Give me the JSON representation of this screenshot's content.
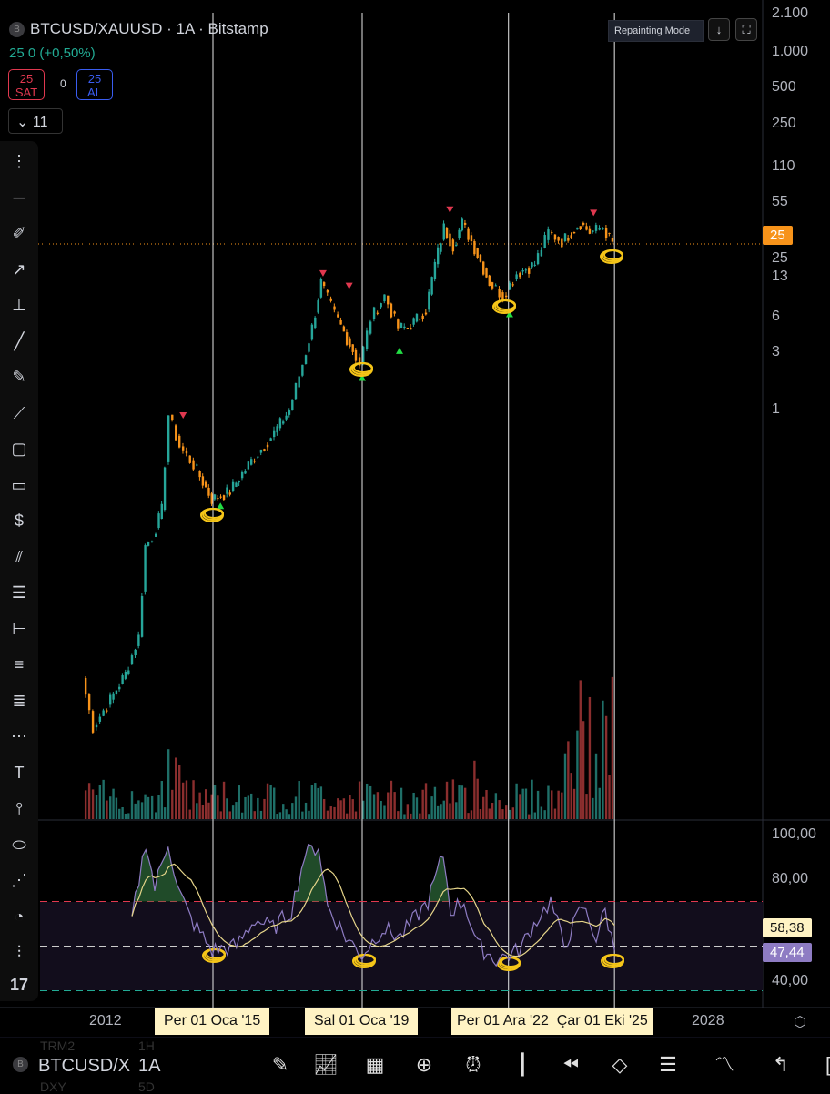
{
  "header": {
    "symbol": "BTCUSD/XAUUSD",
    "interval": "1A",
    "exchange": "Bitstamp",
    "title": "BTCUSD/XAUUSD · 1A · Bitstamp",
    "logo_letter": "B",
    "change": "25 0 (+0,50%)"
  },
  "trade": {
    "sell_value": "25",
    "sell_label": "SAT",
    "spread": "0",
    "buy_value": "25",
    "buy_label": "AL"
  },
  "indicators_toggle": {
    "count": "11"
  },
  "overlay": {
    "repainting_label": "Repainting Mode",
    "download_icon": "↓",
    "fullscreen_icon": "⛶"
  },
  "price_axis": {
    "ticks": [
      "2.100",
      "1.000",
      "500",
      "250",
      "110",
      "55",
      "25",
      "13",
      "6",
      "3",
      "1"
    ],
    "tick_values": [
      2100,
      1000,
      500,
      250,
      110,
      55,
      25,
      13,
      6,
      3,
      1
    ],
    "scale": "log",
    "current_price": "25",
    "current_color": "#f7931a"
  },
  "rsi_axis": {
    "ticks": [
      "100,00",
      "80,00",
      "40,00"
    ],
    "value_signal": "58,38",
    "value_rsi": "47,44",
    "levels": {
      "upper": 70,
      "middle": 50,
      "lower": 30
    },
    "colors": {
      "upper": "#e0384f",
      "middle": "#9598a1",
      "lower": "#22ab94",
      "rsi": "#8e7cc3",
      "signal": "#e6d58a"
    }
  },
  "time_axis": {
    "labels": [
      "2012",
      "2028"
    ],
    "markers": [
      "Per 01 Oca '15",
      "Sal 01 Oca '19",
      "Per 01 Ara '22",
      "Çar 01 Eki '25"
    ]
  },
  "chart_data": {
    "type": "candlestick",
    "scale": "log",
    "colors": {
      "up": "#26a69a",
      "down": "#f7931a",
      "vol_up": "#1f6f68",
      "vol_down": "#8b2e2e"
    },
    "price_path": [
      [
        2011.56,
        0.0057
      ],
      [
        2011.85,
        0.0022
      ],
      [
        2012.22,
        0.0034
      ],
      [
        2012.71,
        0.0062
      ],
      [
        2013.07,
        0.0126
      ],
      [
        2013.24,
        0.073
      ],
      [
        2013.44,
        0.087
      ],
      [
        2013.68,
        0.147
      ],
      [
        2013.88,
        0.92
      ],
      [
        2014.17,
        0.5
      ],
      [
        2014.54,
        0.35
      ],
      [
        2015.02,
        0.18
      ],
      [
        2015.51,
        0.21
      ],
      [
        2016.0,
        0.35
      ],
      [
        2016.61,
        0.6
      ],
      [
        2017.1,
        1.0
      ],
      [
        2017.46,
        2.45
      ],
      [
        2017.71,
        4.95
      ],
      [
        2017.95,
        11.9
      ],
      [
        2018.32,
        6.4
      ],
      [
        2018.8,
        3.2
      ],
      [
        2019.0,
        2.45
      ],
      [
        2019.29,
        5.9
      ],
      [
        2019.66,
        9.2
      ],
      [
        2020.02,
        4.95
      ],
      [
        2020.27,
        4.95
      ],
      [
        2020.76,
        7.0
      ],
      [
        2021.0,
        16.9
      ],
      [
        2021.24,
        34.2
      ],
      [
        2021.49,
        24.1
      ],
      [
        2021.73,
        37.4
      ],
      [
        2021.98,
        26.3
      ],
      [
        2022.46,
        11.9
      ],
      [
        2022.83,
        9.2
      ],
      [
        2023.2,
        14.2
      ],
      [
        2023.68,
        16.9
      ],
      [
        2024.05,
        31.3
      ],
      [
        2024.41,
        26.3
      ],
      [
        2024.9,
        37.4
      ],
      [
        2025.15,
        31.3
      ],
      [
        2025.51,
        34.2
      ],
      [
        2025.76,
        25
      ]
    ],
    "rsi_path": [
      [
        2012.83,
        62
      ],
      [
        2013.2,
        97
      ],
      [
        2013.44,
        76
      ],
      [
        2013.8,
        97
      ],
      [
        2014.05,
        76
      ],
      [
        2014.41,
        62
      ],
      [
        2014.98,
        48
      ],
      [
        2015.63,
        50
      ],
      [
        2016.12,
        62
      ],
      [
        2016.61,
        58
      ],
      [
        2017.1,
        66
      ],
      [
        2017.46,
        91
      ],
      [
        2017.83,
        95
      ],
      [
        2018.07,
        68
      ],
      [
        2018.56,
        54
      ],
      [
        2019.0,
        46
      ],
      [
        2019.54,
        58
      ],
      [
        2020.02,
        54
      ],
      [
        2020.76,
        70
      ],
      [
        2021.17,
        91
      ],
      [
        2021.37,
        66
      ],
      [
        2021.73,
        70
      ],
      [
        2022.1,
        50
      ],
      [
        2022.59,
        44
      ],
      [
        2023.2,
        48
      ],
      [
        2023.68,
        62
      ],
      [
        2024.05,
        70
      ],
      [
        2024.41,
        50
      ],
      [
        2024.9,
        68
      ],
      [
        2025.27,
        54
      ],
      [
        2025.51,
        66
      ],
      [
        2025.76,
        48
      ]
    ],
    "sell_signals": [
      [
        2014.2,
        0.9
      ],
      [
        2017.95,
        14
      ],
      [
        2018.65,
        11
      ],
      [
        2021.35,
        48
      ],
      [
        2025.2,
        45
      ]
    ],
    "buy_signals": [
      [
        2015.2,
        0.16
      ],
      [
        2019.0,
        1.9
      ],
      [
        2020.0,
        3.2
      ],
      [
        2022.95,
        6.5
      ]
    ],
    "annotations": [
      2015.0,
      2019.0,
      2022.92,
      2025.76
    ]
  },
  "toolbar": {
    "items": [
      "drag-handle",
      "trend-line",
      "brush",
      "arrow",
      "price-range",
      "ray",
      "pencil",
      "path",
      "rectangle",
      "callout",
      "price-label",
      "parallel-channel",
      "horizontal-lines",
      "date-range",
      "fib",
      "fib-ext",
      "fib-channel",
      "text",
      "anchor",
      "circle",
      "pitchfork",
      "curve",
      "long-short"
    ]
  },
  "bottom": {
    "symbol": "BTCUSD/X",
    "interval": "1A",
    "ghost_above": "TRM2",
    "ghost_above_int": "1H",
    "ghost_below": "DXY",
    "ghost_below_int": "5D"
  }
}
